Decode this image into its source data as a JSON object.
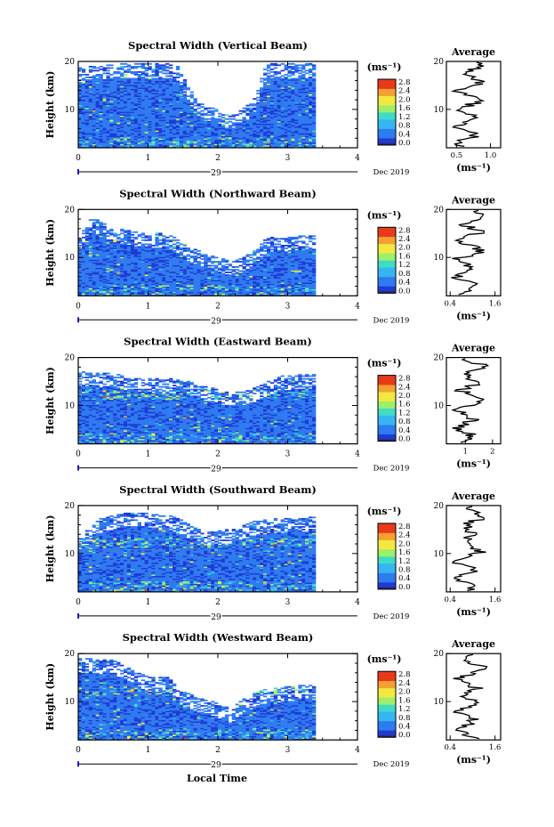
{
  "figure": {
    "xlabel": "Local Time",
    "date_label": "Dec 2019",
    "day_label": "29",
    "ylabel": "Height (km)",
    "avg_title": "Average",
    "unit": "(ms⁻¹)",
    "colorbar_ticks": [
      "0.0",
      "0.4",
      "0.8",
      "1.2",
      "1.6",
      "2.0",
      "2.4",
      "2.8"
    ],
    "colorbar_colors": [
      "#2b2b6e",
      "#1f3bd6",
      "#2f7bf0",
      "#35b5f2",
      "#3fdcc6",
      "#9cf06a",
      "#f2e840",
      "#f5a030",
      "#e83a1a"
    ]
  },
  "chart_data": [
    {
      "type": "heatmap",
      "title": "Spectral Width (Vertical Beam)",
      "xlabel": "Local Time",
      "ylabel": "Height (km)",
      "xlim": [
        0,
        4
      ],
      "ylim": [
        2,
        20
      ],
      "xticks": [
        0,
        1,
        2,
        3,
        4
      ],
      "yticks": [
        10,
        20
      ],
      "data_end_hour": 3.35,
      "coverage_top_km": [
        [
          0.0,
          18.5
        ],
        [
          0.5,
          19.5
        ],
        [
          1.0,
          19.5
        ],
        [
          1.4,
          19.5
        ],
        [
          1.7,
          11.5
        ],
        [
          2.2,
          8.5
        ],
        [
          2.5,
          11.5
        ],
        [
          2.7,
          19.5
        ],
        [
          3.35,
          19.5
        ]
      ],
      "colorbar": {
        "label": "(ms⁻¹)",
        "range": [
          0.0,
          2.8
        ]
      },
      "average": {
        "title": "Average",
        "xlabel": "(ms⁻¹)",
        "xticks": [
          "0.5",
          "1.0"
        ],
        "xlim": [
          0.35,
          1.15
        ],
        "ylim": [
          2,
          20
        ],
        "yticks": [
          10,
          20
        ]
      }
    },
    {
      "type": "heatmap",
      "title": "Spectral Width (Northward Beam)",
      "xlabel": "Local Time",
      "ylabel": "Height (km)",
      "xlim": [
        0,
        4
      ],
      "ylim": [
        2,
        20
      ],
      "xticks": [
        0,
        1,
        2,
        3,
        4
      ],
      "yticks": [
        10,
        20
      ],
      "data_end_hour": 3.35,
      "coverage_top_km": [
        [
          0.0,
          14.0
        ],
        [
          0.2,
          18.5
        ],
        [
          0.5,
          16.0
        ],
        [
          1.0,
          15.0
        ],
        [
          1.3,
          15.0
        ],
        [
          1.6,
          12.0
        ],
        [
          2.2,
          9.0
        ],
        [
          2.5,
          11.0
        ],
        [
          2.7,
          14.0
        ],
        [
          3.35,
          14.5
        ]
      ],
      "colorbar": {
        "label": "(ms⁻¹)",
        "range": [
          0.0,
          2.8
        ]
      },
      "average": {
        "title": "Average",
        "xlabel": "(ms⁻¹)",
        "xticks": [
          "0.4",
          "1.6"
        ],
        "xlim": [
          0.3,
          1.75
        ],
        "ylim": [
          2,
          20
        ],
        "yticks": [
          10,
          20
        ]
      }
    },
    {
      "type": "heatmap",
      "title": "Spectral Width (Eastward Beam)",
      "xlabel": "Local Time",
      "ylabel": "Height (km)",
      "xlim": [
        0,
        4
      ],
      "ylim": [
        2,
        20
      ],
      "xticks": [
        0,
        1,
        2,
        3,
        4
      ],
      "yticks": [
        10,
        20
      ],
      "data_end_hour": 3.35,
      "coverage_top_km": [
        [
          0.0,
          17.0
        ],
        [
          0.5,
          16.5
        ],
        [
          1.0,
          15.5
        ],
        [
          1.5,
          15.5
        ],
        [
          1.8,
          14.0
        ],
        [
          2.2,
          12.5
        ],
        [
          2.5,
          13.5
        ],
        [
          2.9,
          16.0
        ],
        [
          3.35,
          16.5
        ]
      ],
      "colorbar": {
        "label": "(ms⁻¹)",
        "range": [
          0.0,
          2.8
        ]
      },
      "average": {
        "title": "Average",
        "xlabel": "(ms⁻¹)",
        "xticks": [
          "1",
          "2"
        ],
        "xlim": [
          0.3,
          2.3
        ],
        "ylim": [
          2,
          20
        ],
        "yticks": [
          10,
          20
        ]
      }
    },
    {
      "type": "heatmap",
      "title": "Spectral Width (Southward Beam)",
      "xlabel": "Local Time",
      "ylabel": "Height (km)",
      "xlim": [
        0,
        4
      ],
      "ylim": [
        2,
        20
      ],
      "xticks": [
        0,
        1,
        2,
        3,
        4
      ],
      "yticks": [
        10,
        20
      ],
      "data_end_hour": 3.35,
      "coverage_top_km": [
        [
          0.0,
          13.0
        ],
        [
          0.3,
          17.0
        ],
        [
          0.6,
          18.5
        ],
        [
          1.0,
          18.5
        ],
        [
          1.4,
          17.5
        ],
        [
          1.8,
          14.5
        ],
        [
          2.2,
          15.0
        ],
        [
          2.6,
          17.0
        ],
        [
          3.35,
          17.5
        ]
      ],
      "colorbar": {
        "label": "(ms⁻¹)",
        "range": [
          0.0,
          2.8
        ]
      },
      "average": {
        "title": "Average",
        "xlabel": "(ms⁻¹)",
        "xticks": [
          "0.4",
          "1.6"
        ],
        "xlim": [
          0.3,
          1.75
        ],
        "ylim": [
          2,
          20
        ],
        "yticks": [
          10,
          20
        ]
      }
    },
    {
      "type": "heatmap",
      "title": "Spectral Width (Westward Beam)",
      "xlabel": "Local Time",
      "ylabel": "Height (km)",
      "xlim": [
        0,
        4
      ],
      "ylim": [
        2,
        20
      ],
      "xticks": [
        0,
        1,
        2,
        3,
        4
      ],
      "yticks": [
        10,
        20
      ],
      "data_end_hour": 3.35,
      "coverage_top_km": [
        [
          0.0,
          19.0
        ],
        [
          0.5,
          18.5
        ],
        [
          1.0,
          15.0
        ],
        [
          1.3,
          15.0
        ],
        [
          1.5,
          12.0
        ],
        [
          2.2,
          8.5
        ],
        [
          2.4,
          11.0
        ],
        [
          2.7,
          12.5
        ],
        [
          3.35,
          13.5
        ]
      ],
      "colorbar": {
        "label": "(ms⁻¹)",
        "range": [
          0.0,
          2.8
        ]
      },
      "average": {
        "title": "Average",
        "xlabel": "(ms⁻¹)",
        "xticks": [
          "0.4",
          "1.6"
        ],
        "xlim": [
          0.3,
          1.75
        ],
        "ylim": [
          2,
          20
        ],
        "yticks": [
          10,
          20
        ]
      }
    }
  ]
}
